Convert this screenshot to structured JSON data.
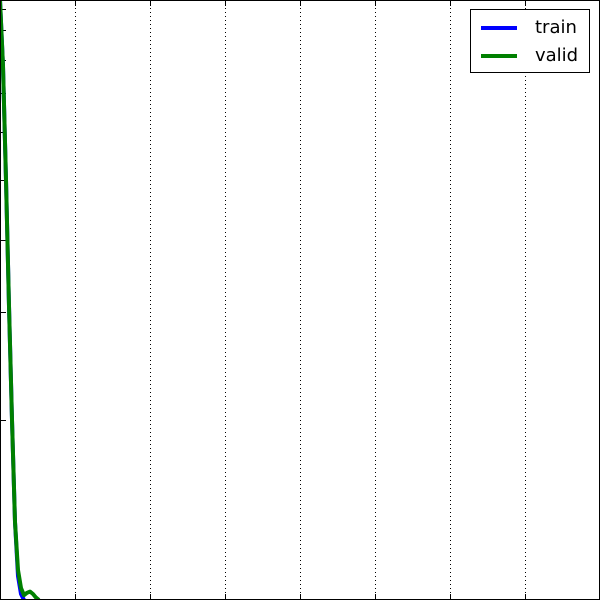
{
  "chart_data": {
    "type": "line",
    "title": "",
    "xlabel": "",
    "ylabel": "",
    "xlim": [
      0,
      40
    ],
    "ylim": [
      0,
      10
    ],
    "grid": true,
    "legend_position": "top-right",
    "series": [
      {
        "name": "train",
        "color": "#0000ff",
        "x": [
          0,
          0.2,
          0.4,
          0.6,
          0.8,
          1.0,
          1.2,
          1.4,
          1.6
        ],
        "y": [
          10,
          8.9,
          7.0,
          4.9,
          3.0,
          1.3,
          0.4,
          0.1,
          0
        ]
      },
      {
        "name": "valid",
        "color": "#008000",
        "x": [
          0,
          0.2,
          0.4,
          0.6,
          0.8,
          1.0,
          1.2,
          1.4,
          1.6,
          1.8,
          2.0,
          2.2,
          2.4,
          2.6
        ],
        "y": [
          10,
          8.9,
          7.0,
          4.9,
          3.0,
          1.3,
          0.5,
          0.2,
          0.08,
          0.12,
          0.14,
          0.1,
          0.04,
          0
        ]
      }
    ]
  },
  "legend": {
    "train_label": "train",
    "valid_label": "valid"
  }
}
